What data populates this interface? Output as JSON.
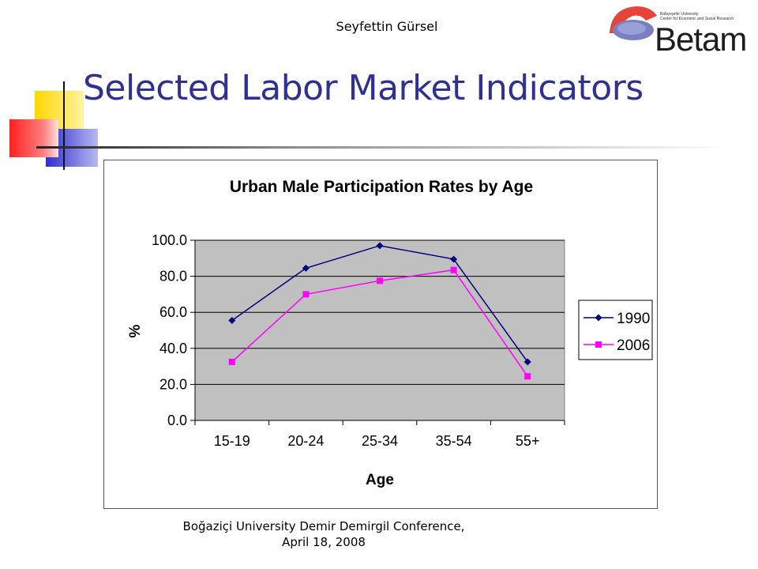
{
  "slide": {
    "author": "Seyfettin Gürsel",
    "title": "Selected Labor Market Indicators",
    "footer_line1": "Boğaziçi University Demir Demirgil Conference,",
    "footer_line2": "April 18, 2008",
    "logo": {
      "brand": "Betam",
      "sub_line1": "Bahçeşehir University",
      "sub_line2": "Center for Economic and Social Research"
    }
  },
  "colors": {
    "title": "#2E3192",
    "plot_bg": "#C0C0C0",
    "series_1990": "#000080",
    "series_2006": "#FF00FF",
    "deco_yellow": "#FFD700",
    "deco_red": "#FF3B3B",
    "deco_blue": "#3B3BD6"
  },
  "chart_data": {
    "type": "line",
    "title": "Urban Male Participation Rates by Age",
    "xlabel": "Age",
    "ylabel": "%",
    "categories": [
      "15-19",
      "20-24",
      "25-34",
      "35-54",
      "55+"
    ],
    "yticks": [
      "0.0",
      "20.0",
      "40.0",
      "60.0",
      "80.0",
      "100.0"
    ],
    "ylim": [
      0,
      100
    ],
    "grid": true,
    "legend_position": "right",
    "series": [
      {
        "name": "1990",
        "values": [
          55.5,
          84.5,
          97.0,
          89.5,
          32.5
        ],
        "marker": "diamond",
        "color": "#000080"
      },
      {
        "name": "2006",
        "values": [
          32.5,
          70.0,
          77.5,
          83.5,
          24.5
        ],
        "marker": "square",
        "color": "#FF00FF"
      }
    ]
  }
}
